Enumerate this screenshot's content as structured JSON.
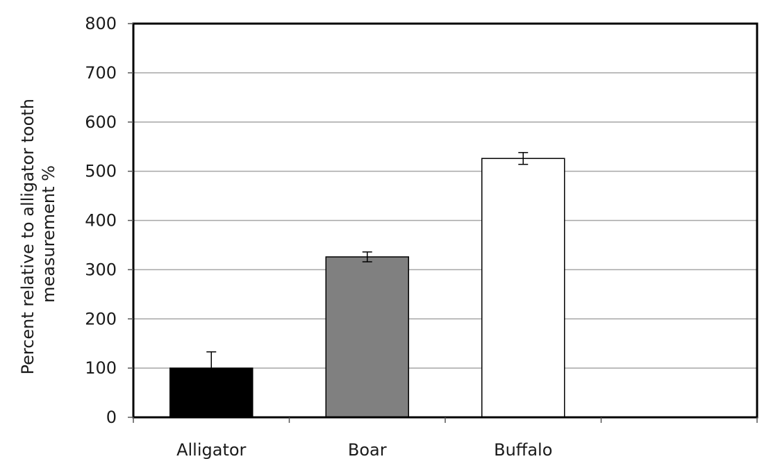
{
  "chart_data": {
    "type": "bar",
    "title": "",
    "xlabel": "",
    "ylabel_lines": [
      "Percent relative to alligator tooth",
      "measurement %"
    ],
    "categories": [
      "Alligator",
      "Boar",
      "Buffalo"
    ],
    "series": [
      {
        "values": [
          100,
          326,
          526
        ],
        "error_plus": [
          33,
          10,
          12
        ],
        "error_minus": [
          0,
          10,
          12
        ],
        "colors": [
          "#000000",
          "#808080",
          "#ffffff"
        ]
      }
    ],
    "ylim": [
      0,
      800
    ],
    "yticks": [
      "0",
      "100",
      "200",
      "300",
      "400",
      "500",
      "600",
      "700",
      "800"
    ],
    "y_gridlines": true,
    "legend": "none",
    "frame_color": "#000000",
    "grid_color": "#a6a6a6"
  }
}
